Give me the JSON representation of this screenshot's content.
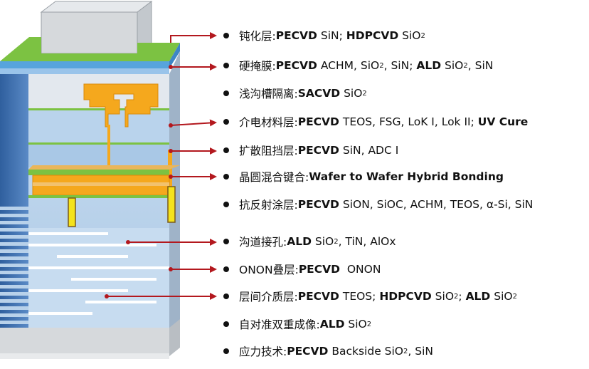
{
  "items": [
    {
      "zh": "钝化层:",
      "segs": [
        {
          "t": "PECVD",
          "b": true
        },
        {
          "t": " SiN; "
        },
        {
          "t": "HDPCVD",
          "b": true
        },
        {
          "t": " SiO"
        },
        {
          "t": "2",
          "sub": true
        }
      ]
    },
    {
      "zh": "硬掩膜:",
      "segs": [
        {
          "t": "PECVD",
          "b": true
        },
        {
          "t": " ACHM, SiO"
        },
        {
          "t": "2",
          "sub": true
        },
        {
          "t": ", SiN; "
        },
        {
          "t": "ALD",
          "b": true
        },
        {
          "t": " SiO"
        },
        {
          "t": "2",
          "sub": true
        },
        {
          "t": ", SiN"
        }
      ]
    },
    {
      "zh": "浅沟槽隔离:",
      "segs": [
        {
          "t": "SACVD",
          "b": true
        },
        {
          "t": " SiO"
        },
        {
          "t": "2",
          "sub": true
        }
      ]
    },
    {
      "zh": "介电材料层:",
      "segs": [
        {
          "t": "PECVD",
          "b": true
        },
        {
          "t": " TEOS, FSG, LoK I, Lok II; "
        },
        {
          "t": "UV Cure",
          "b": true
        }
      ]
    },
    {
      "zh": "扩散阻挡层:",
      "segs": [
        {
          "t": "PECVD",
          "b": true
        },
        {
          "t": " SiN, ADC I"
        }
      ]
    },
    {
      "zh": "晶圆混合键合:",
      "segs": [
        {
          "t": "Wafer to Wafer Hybrid Bonding",
          "b": true
        }
      ]
    },
    {
      "zh": "抗反射涂层:",
      "segs": [
        {
          "t": "PECVD",
          "b": true
        },
        {
          "t": " SiON, SiOC, ACHM, TEOS, α-Si, SiN"
        }
      ]
    },
    {
      "zh": "沟道接孔:",
      "segs": [
        {
          "t": "ALD",
          "b": true
        },
        {
          "t": " SiO"
        },
        {
          "t": "2",
          "sub": true
        },
        {
          "t": ", TiN, AlOx"
        }
      ]
    },
    {
      "zh": "ONON叠层:",
      "segs": [
        {
          "t": "PECVD",
          "b": true
        },
        {
          "t": "  ONON"
        }
      ]
    },
    {
      "zh": "层间介质层:",
      "segs": [
        {
          "t": "PECVD",
          "b": true
        },
        {
          "t": " TEOS; "
        },
        {
          "t": "HDPCVD",
          "b": true
        },
        {
          "t": " SiO"
        },
        {
          "t": "2",
          "sub": true
        },
        {
          "t": "; "
        },
        {
          "t": "ALD",
          "b": true
        },
        {
          "t": " SiO"
        },
        {
          "t": "2",
          "sub": true
        }
      ]
    },
    {
      "zh": "自对准双重成像:",
      "segs": [
        {
          "t": "ALD",
          "b": true
        },
        {
          "t": " SiO"
        },
        {
          "t": "2",
          "sub": true
        }
      ]
    },
    {
      "zh": "应力技术:",
      "segs": [
        {
          "t": "PECVD",
          "b": true
        },
        {
          "t": " Backside SiO"
        },
        {
          "t": "2",
          "sub": true
        },
        {
          "t": ", SiN"
        }
      ]
    }
  ],
  "colors": {
    "arrow": "#b3181e",
    "block_light": "#dbe6f2",
    "block_blue": "#9dc3e6",
    "block_side": "#3e6fae",
    "green": "#7cc242",
    "orange": "#f5a81d",
    "yellow": "#f4e31b",
    "gray": "#d6d9dc"
  }
}
